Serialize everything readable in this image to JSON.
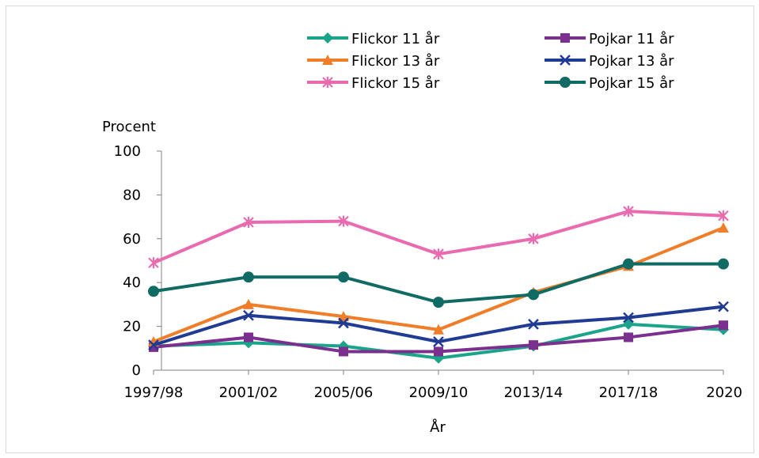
{
  "chart_data": {
    "type": "line",
    "title": "",
    "xlabel": "År",
    "ylabel": "Procent",
    "categories": [
      "1997/98",
      "2001/02",
      "2005/06",
      "2009/10",
      "2013/14",
      "2017/18",
      "2020"
    ],
    "ylim": [
      0,
      100
    ],
    "yticks": [
      "0",
      "20",
      "40",
      "60",
      "80",
      "100"
    ],
    "grid": false,
    "legend_position": "top",
    "series": [
      {
        "name": "Flickor 11 år",
        "color": "#1aa58a",
        "marker": "diamond",
        "values": [
          11,
          12.5,
          11,
          5.5,
          11,
          21,
          18.5
        ]
      },
      {
        "name": "Pojkar 11 år",
        "color": "#7b2f8e",
        "marker": "square",
        "values": [
          10.5,
          15,
          8.5,
          8.5,
          11.5,
          15,
          20.5
        ]
      },
      {
        "name": "Flickor 13 år",
        "color": "#f07d28",
        "marker": "triangle",
        "values": [
          13,
          30,
          24.5,
          18.5,
          35.5,
          47.5,
          65
        ]
      },
      {
        "name": "Pojkar 13 år",
        "color": "#203b94",
        "marker": "x",
        "values": [
          11.5,
          25,
          21.5,
          13,
          21,
          24,
          29
        ]
      },
      {
        "name": "Flickor 15 år",
        "color": "#e96aae",
        "marker": "asterisk",
        "values": [
          49,
          67.5,
          68,
          53,
          60,
          72.5,
          70.5
        ]
      },
      {
        "name": "Pojkar 15 år",
        "color": "#0f6b63",
        "marker": "circle",
        "values": [
          36,
          42.5,
          42.5,
          31,
          34.5,
          48.5,
          48.5
        ]
      }
    ]
  }
}
